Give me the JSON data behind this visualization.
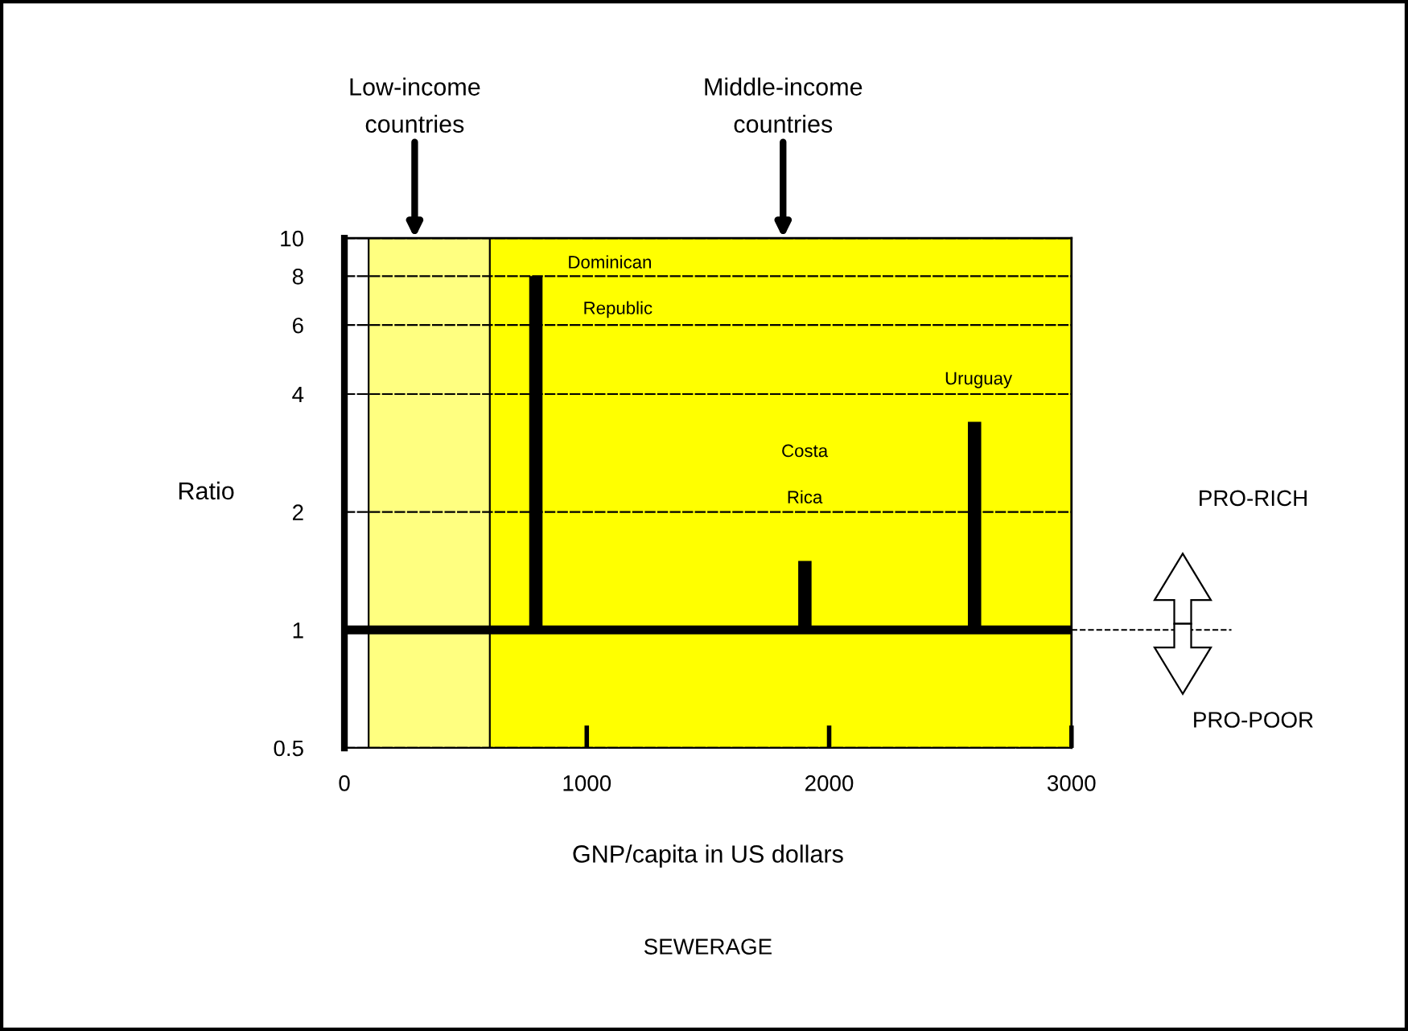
{
  "chart_data": {
    "type": "bar",
    "title": "SEWERAGE",
    "xlabel": "GNP/capita in US dollars",
    "ylabel": "Ratio",
    "x": [
      790,
      1900,
      2600
    ],
    "base": [
      1,
      1,
      1
    ],
    "values": [
      7,
      0.5,
      2.4
    ],
    "color": "#000000",
    "log": "y",
    "xlim": [
      0,
      3000
    ],
    "xticks": [
      0,
      1000,
      2000,
      3000
    ],
    "ylim": [
      0.5,
      10
    ],
    "yticks": [
      0.5,
      1,
      2,
      4,
      6,
      8,
      10
    ],
    "grid": "y",
    "bands": [
      {
        "axis": "x",
        "from": 100,
        "to": 600,
        "color": "#ffff80"
      },
      {
        "axis": "x",
        "from": 600,
        "to": 3000,
        "color": "#ffff00"
      }
    ],
    "ref_lines": [
      {
        "axis": "y",
        "value": 1,
        "color": "#000000"
      },
      {
        "axis": "x",
        "value": 100,
        "color": "#000000"
      },
      {
        "axis": "x",
        "value": 600,
        "color": "#000000"
      }
    ],
    "annotations": [
      {
        "text": "Low-income\ncountries",
        "x": 290,
        "y": 10
      },
      {
        "text": "Middle-income\ncountries",
        "x": 1810,
        "y": 10
      },
      "Dominican",
      "Republic",
      "Costa",
      "Rica",
      "Uruguay",
      "PRO-RICH",
      "PRO-POOR"
    ]
  }
}
